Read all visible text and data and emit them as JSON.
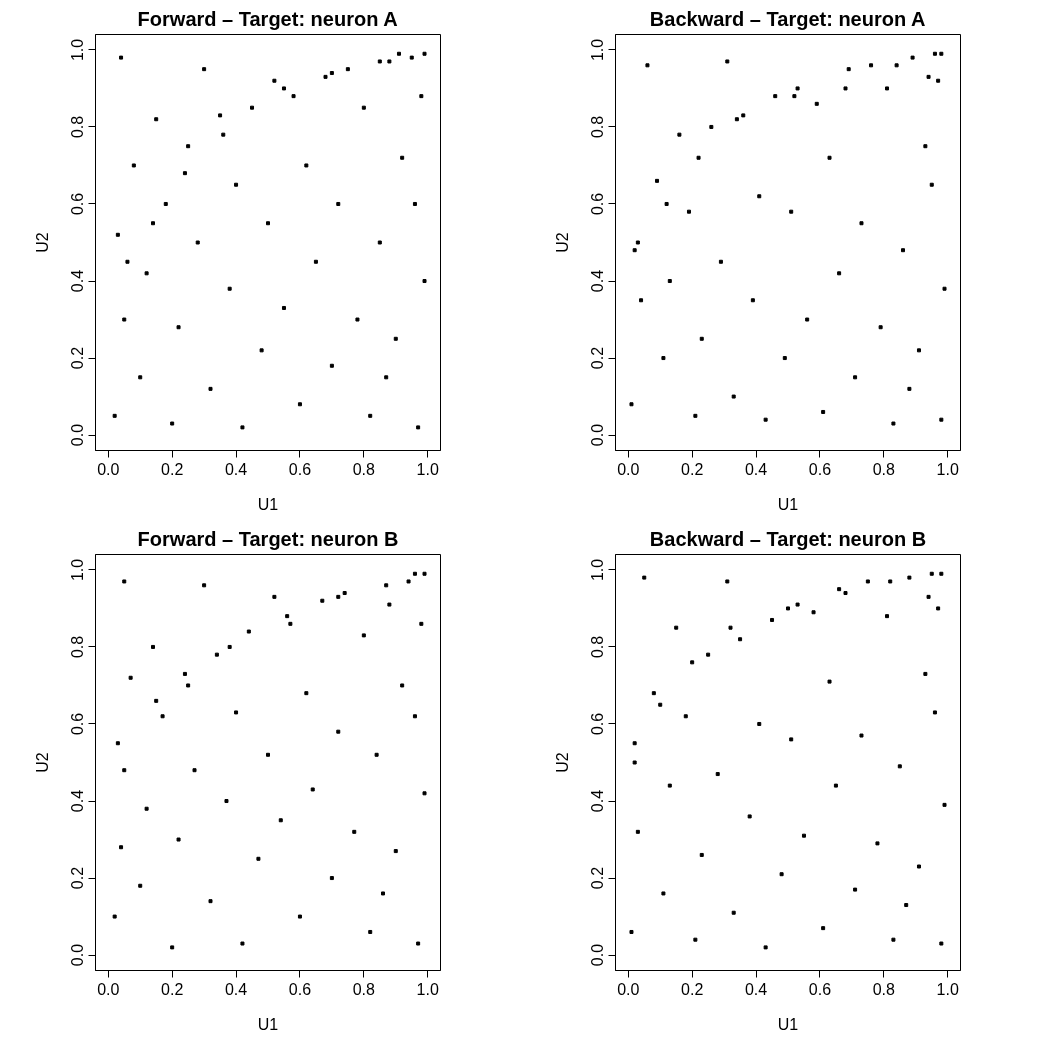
{
  "chart_data": [
    {
      "type": "scatter",
      "title": "Forward – Target: neuron A",
      "xlabel": "U1",
      "ylabel": "U2",
      "xlim": [
        -0.04,
        1.04
      ],
      "ylim": [
        -0.04,
        1.04
      ],
      "xticks": [
        {
          "value": 0,
          "label": "0.0"
        },
        {
          "value": 0.2,
          "label": "0.2"
        },
        {
          "value": 0.4,
          "label": "0.4"
        },
        {
          "value": 0.6,
          "label": "0.6"
        },
        {
          "value": 0.8,
          "label": "0.8"
        },
        {
          "value": 1,
          "label": "1.0"
        }
      ],
      "yticks": [
        {
          "value": 0,
          "label": "0.0"
        },
        {
          "value": 0.2,
          "label": "0.2"
        },
        {
          "value": 0.4,
          "label": "0.4"
        },
        {
          "value": 0.6,
          "label": "0.6"
        },
        {
          "value": 0.8,
          "label": "0.8"
        },
        {
          "value": 1,
          "label": "1.0"
        }
      ],
      "marker": "square",
      "grid": false,
      "series": [
        {
          "color": "#000000",
          "x": [
            0.02,
            0.05,
            0.03,
            0.04,
            0.08,
            0.1,
            0.12,
            0.15,
            0.18,
            0.2,
            0.22,
            0.25,
            0.28,
            0.3,
            0.32,
            0.35,
            0.38,
            0.4,
            0.42,
            0.45,
            0.48,
            0.5,
            0.52,
            0.55,
            0.58,
            0.6,
            0.62,
            0.65,
            0.68,
            0.7,
            0.72,
            0.75,
            0.78,
            0.8,
            0.82,
            0.85,
            0.88,
            0.9,
            0.92,
            0.95,
            0.97,
            0.99,
            0.98,
            0.91,
            0.96,
            0.87,
            0.06,
            0.14,
            0.24,
            0.36,
            0.55,
            0.7,
            0.85,
            0.99
          ],
          "values": [
            0.05,
            0.3,
            0.52,
            0.98,
            0.7,
            0.15,
            0.42,
            0.82,
            0.6,
            0.03,
            0.28,
            0.75,
            0.5,
            0.95,
            0.12,
            0.83,
            0.38,
            0.65,
            0.02,
            0.85,
            0.22,
            0.55,
            0.92,
            0.33,
            0.88,
            0.08,
            0.7,
            0.45,
            0.93,
            0.18,
            0.6,
            0.95,
            0.3,
            0.85,
            0.05,
            0.5,
            0.97,
            0.25,
            0.72,
            0.98,
            0.02,
            0.4,
            0.88,
            0.99,
            0.6,
            0.15,
            0.45,
            0.55,
            0.68,
            0.78,
            0.9,
            0.94,
            0.97,
            0.99
          ]
        }
      ]
    },
    {
      "type": "scatter",
      "title": "Backward – Target: neuron A",
      "xlabel": "U1",
      "ylabel": "U2",
      "xlim": [
        -0.04,
        1.04
      ],
      "ylim": [
        -0.04,
        1.04
      ],
      "xticks": [
        {
          "value": 0,
          "label": "0.0"
        },
        {
          "value": 0.2,
          "label": "0.2"
        },
        {
          "value": 0.4,
          "label": "0.4"
        },
        {
          "value": 0.6,
          "label": "0.6"
        },
        {
          "value": 0.8,
          "label": "0.8"
        },
        {
          "value": 1,
          "label": "1.0"
        }
      ],
      "yticks": [
        {
          "value": 0,
          "label": "0.0"
        },
        {
          "value": 0.2,
          "label": "0.2"
        },
        {
          "value": 0.4,
          "label": "0.4"
        },
        {
          "value": 0.6,
          "label": "0.6"
        },
        {
          "value": 0.8,
          "label": "0.8"
        },
        {
          "value": 1,
          "label": "1.0"
        }
      ],
      "marker": "square",
      "grid": false,
      "series": [
        {
          "color": "#000000",
          "x": [
            0.01,
            0.04,
            0.02,
            0.06,
            0.09,
            0.11,
            0.13,
            0.16,
            0.19,
            0.21,
            0.23,
            0.26,
            0.29,
            0.31,
            0.33,
            0.36,
            0.39,
            0.41,
            0.43,
            0.46,
            0.49,
            0.51,
            0.53,
            0.56,
            0.59,
            0.61,
            0.63,
            0.66,
            0.69,
            0.71,
            0.73,
            0.76,
            0.79,
            0.81,
            0.83,
            0.86,
            0.89,
            0.91,
            0.93,
            0.96,
            0.98,
            0.99,
            0.97,
            0.94,
            0.95,
            0.88,
            0.03,
            0.12,
            0.22,
            0.34,
            0.52,
            0.68,
            0.84,
            0.98
          ],
          "values": [
            0.08,
            0.35,
            0.48,
            0.96,
            0.66,
            0.2,
            0.4,
            0.78,
            0.58,
            0.05,
            0.25,
            0.8,
            0.45,
            0.97,
            0.1,
            0.83,
            0.35,
            0.62,
            0.04,
            0.88,
            0.2,
            0.58,
            0.9,
            0.3,
            0.86,
            0.06,
            0.72,
            0.42,
            0.95,
            0.15,
            0.55,
            0.96,
            0.28,
            0.9,
            0.03,
            0.48,
            0.98,
            0.22,
            0.75,
            0.99,
            0.04,
            0.38,
            0.92,
            0.93,
            0.65,
            0.12,
            0.5,
            0.6,
            0.72,
            0.82,
            0.88,
            0.9,
            0.96,
            0.99
          ]
        }
      ]
    },
    {
      "type": "scatter",
      "title": "Forward – Target: neuron B",
      "xlabel": "U1",
      "ylabel": "U2",
      "xlim": [
        -0.04,
        1.04
      ],
      "ylim": [
        -0.04,
        1.04
      ],
      "xticks": [
        {
          "value": 0,
          "label": "0.0"
        },
        {
          "value": 0.2,
          "label": "0.2"
        },
        {
          "value": 0.4,
          "label": "0.4"
        },
        {
          "value": 0.6,
          "label": "0.6"
        },
        {
          "value": 0.8,
          "label": "0.8"
        },
        {
          "value": 1,
          "label": "1.0"
        }
      ],
      "yticks": [
        {
          "value": 0,
          "label": "0.0"
        },
        {
          "value": 0.2,
          "label": "0.2"
        },
        {
          "value": 0.4,
          "label": "0.4"
        },
        {
          "value": 0.6,
          "label": "0.6"
        },
        {
          "value": 0.8,
          "label": "0.8"
        },
        {
          "value": 1,
          "label": "1.0"
        }
      ],
      "marker": "square",
      "grid": false,
      "series": [
        {
          "color": "#000000",
          "x": [
            0.02,
            0.04,
            0.03,
            0.05,
            0.07,
            0.1,
            0.12,
            0.14,
            0.17,
            0.2,
            0.22,
            0.24,
            0.27,
            0.3,
            0.32,
            0.34,
            0.37,
            0.4,
            0.42,
            0.44,
            0.47,
            0.5,
            0.52,
            0.54,
            0.57,
            0.6,
            0.62,
            0.64,
            0.67,
            0.7,
            0.72,
            0.74,
            0.77,
            0.8,
            0.82,
            0.84,
            0.87,
            0.9,
            0.92,
            0.94,
            0.97,
            0.99,
            0.98,
            0.96,
            0.96,
            0.86,
            0.05,
            0.15,
            0.25,
            0.38,
            0.56,
            0.72,
            0.88,
            0.99
          ],
          "values": [
            0.1,
            0.28,
            0.55,
            0.97,
            0.72,
            0.18,
            0.38,
            0.8,
            0.62,
            0.02,
            0.3,
            0.73,
            0.48,
            0.96,
            0.14,
            0.78,
            0.4,
            0.63,
            0.03,
            0.84,
            0.25,
            0.52,
            0.93,
            0.35,
            0.86,
            0.1,
            0.68,
            0.43,
            0.92,
            0.2,
            0.58,
            0.94,
            0.32,
            0.83,
            0.06,
            0.52,
            0.96,
            0.27,
            0.7,
            0.97,
            0.03,
            0.42,
            0.86,
            0.99,
            0.62,
            0.16,
            0.48,
            0.66,
            0.7,
            0.8,
            0.88,
            0.93,
            0.91,
            0.99
          ]
        }
      ]
    },
    {
      "type": "scatter",
      "title": "Backward – Target: neuron B",
      "xlabel": "U1",
      "ylabel": "U2",
      "xlim": [
        -0.04,
        1.04
      ],
      "ylim": [
        -0.04,
        1.04
      ],
      "xticks": [
        {
          "value": 0,
          "label": "0.0"
        },
        {
          "value": 0.2,
          "label": "0.2"
        },
        {
          "value": 0.4,
          "label": "0.4"
        },
        {
          "value": 0.6,
          "label": "0.6"
        },
        {
          "value": 0.8,
          "label": "0.8"
        },
        {
          "value": 1,
          "label": "1.0"
        }
      ],
      "yticks": [
        {
          "value": 0,
          "label": "0.0"
        },
        {
          "value": 0.2,
          "label": "0.2"
        },
        {
          "value": 0.4,
          "label": "0.4"
        },
        {
          "value": 0.6,
          "label": "0.6"
        },
        {
          "value": 0.8,
          "label": "0.8"
        },
        {
          "value": 1,
          "label": "1.0"
        }
      ],
      "marker": "square",
      "grid": false,
      "series": [
        {
          "color": "#000000",
          "x": [
            0.01,
            0.03,
            0.02,
            0.05,
            0.08,
            0.11,
            0.13,
            0.15,
            0.18,
            0.21,
            0.23,
            0.25,
            0.28,
            0.31,
            0.33,
            0.35,
            0.38,
            0.41,
            0.43,
            0.45,
            0.48,
            0.51,
            0.53,
            0.55,
            0.58,
            0.61,
            0.63,
            0.65,
            0.68,
            0.71,
            0.73,
            0.75,
            0.78,
            0.81,
            0.83,
            0.85,
            0.88,
            0.91,
            0.93,
            0.95,
            0.98,
            0.99,
            0.97,
            0.94,
            0.96,
            0.87,
            0.02,
            0.1,
            0.2,
            0.32,
            0.5,
            0.66,
            0.82,
            0.98
          ],
          "values": [
            0.06,
            0.32,
            0.5,
            0.98,
            0.68,
            0.16,
            0.44,
            0.85,
            0.62,
            0.04,
            0.26,
            0.78,
            0.47,
            0.97,
            0.11,
            0.82,
            0.36,
            0.6,
            0.02,
            0.87,
            0.21,
            0.56,
            0.91,
            0.31,
            0.89,
            0.07,
            0.71,
            0.44,
            0.94,
            0.17,
            0.57,
            0.97,
            0.29,
            0.88,
            0.04,
            0.49,
            0.98,
            0.23,
            0.73,
            0.99,
            0.03,
            0.39,
            0.9,
            0.93,
            0.63,
            0.13,
            0.55,
            0.65,
            0.76,
            0.85,
            0.9,
            0.95,
            0.97,
            0.99
          ]
        }
      ]
    }
  ]
}
